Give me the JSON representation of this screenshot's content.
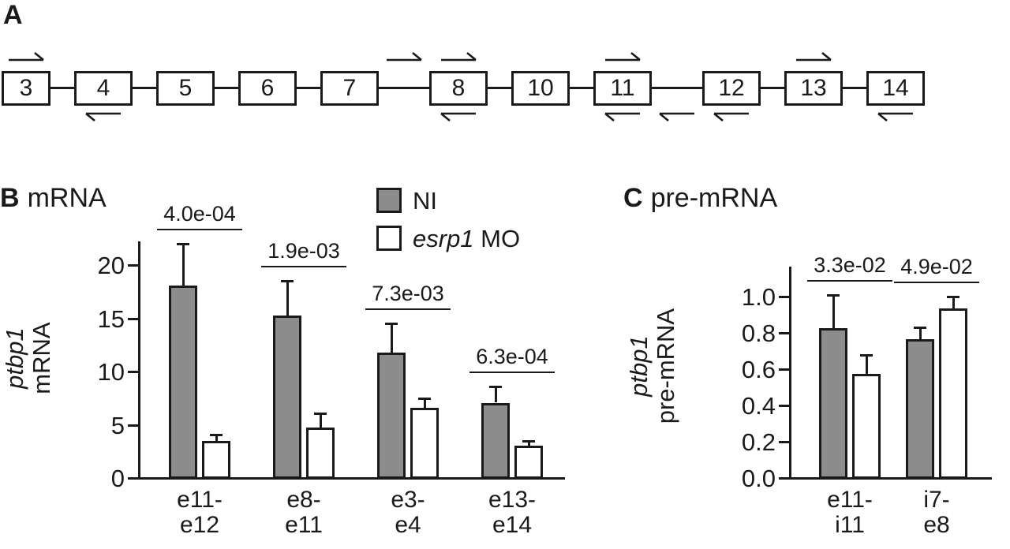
{
  "figure": {
    "panel_a_label": "A",
    "panel_b_label": "B",
    "panel_b_title": "mRNA",
    "panel_c_label": "C",
    "panel_c_title": "pre-mRNA"
  },
  "gene_diagram": {
    "exons": [
      {
        "label": "3"
      },
      {
        "label": "4"
      },
      {
        "label": "5"
      },
      {
        "label": "6"
      },
      {
        "label": "7",
        "wide_gap_after": true
      },
      {
        "label": "8"
      },
      {
        "label": "10"
      },
      {
        "label": "11",
        "wide_gap_after": true
      },
      {
        "label": "12"
      },
      {
        "label": "13"
      },
      {
        "label": "14"
      }
    ],
    "primer_arrows": [
      {
        "at": "exon-3",
        "side": "above",
        "dir": "right"
      },
      {
        "at": "exon-4",
        "side": "below",
        "dir": "left"
      },
      {
        "at": "gap-after-exon-7",
        "side": "above",
        "dir": "right"
      },
      {
        "at": "exon-8",
        "side": "above",
        "dir": "right"
      },
      {
        "at": "exon-8",
        "side": "below",
        "dir": "left"
      },
      {
        "at": "exon-11",
        "side": "above",
        "dir": "right"
      },
      {
        "at": "exon-11",
        "side": "below",
        "dir": "left"
      },
      {
        "at": "gap-after-exon-11",
        "side": "below",
        "dir": "left"
      },
      {
        "at": "exon-12",
        "side": "below",
        "dir": "left"
      },
      {
        "at": "exon-13",
        "side": "above",
        "dir": "right"
      },
      {
        "at": "exon-14",
        "side": "below",
        "dir": "left"
      }
    ]
  },
  "legend": {
    "ni_label": "NI",
    "mo_label_italic": "esrp1",
    "mo_label_rest": " MO",
    "ni_fill": "#8c8c8c",
    "mo_fill": "#ffffff"
  },
  "panel_b": {
    "ylabel_line1": "ptbp1",
    "ylabel_line2": "mRNA"
  },
  "panel_c": {
    "ylabel_line1": "ptbp1",
    "ylabel_line2": "pre-mRNA"
  },
  "chart_data": [
    {
      "type": "bar",
      "panel": "B",
      "title": "mRNA",
      "ylabel": "ptbp1 mRNA",
      "xlabel": "",
      "categories": [
        "e11-\ne12",
        "e8-\ne11",
        "e3-\ne4",
        "e13-\ne14"
      ],
      "series": [
        {
          "name": "NI",
          "fill": "#8c8c8c",
          "values": [
            18.0,
            15.2,
            11.7,
            7.0
          ],
          "errors_upper": [
            4.0,
            3.3,
            2.8,
            1.6
          ]
        },
        {
          "name": "esrp1 MO",
          "fill": "#ffffff",
          "values": [
            3.4,
            4.7,
            6.5,
            3.0
          ],
          "errors_upper": [
            0.7,
            1.4,
            1.0,
            0.5
          ]
        }
      ],
      "pvalues": [
        "4.0e-04",
        "1.9e-03",
        "7.3e-03",
        "6.3e-04"
      ],
      "ylim": [
        0,
        22
      ],
      "ytick_values": [
        0,
        5,
        10,
        15,
        20
      ],
      "ytick_labels": [
        "0",
        "5",
        "10",
        "15",
        "20"
      ],
      "grid": false,
      "legend_position": "top-center"
    },
    {
      "type": "bar",
      "panel": "C",
      "title": "pre-mRNA",
      "ylabel": "ptbp1 pre-mRNA",
      "xlabel": "",
      "categories": [
        "e11-\ni11",
        "i7-\ne8"
      ],
      "series": [
        {
          "name": "NI",
          "fill": "#8c8c8c",
          "values": [
            0.82,
            0.76
          ],
          "errors_upper": [
            0.19,
            0.07
          ]
        },
        {
          "name": "esrp1 MO",
          "fill": "#ffffff",
          "values": [
            0.57,
            0.93
          ],
          "errors_upper": [
            0.11,
            0.07
          ]
        }
      ],
      "pvalues": [
        "3.3e-02",
        "4.9e-02"
      ],
      "ylim": [
        0,
        1.15
      ],
      "ytick_values": [
        0.0,
        0.2,
        0.4,
        0.6,
        0.8,
        1.0
      ],
      "ytick_labels": [
        "0.0",
        "0.2",
        "0.4",
        "0.6",
        "0.8",
        "1.0"
      ],
      "grid": false,
      "legend_position": "none"
    }
  ],
  "colors": {
    "ink": "#1a1a1a",
    "ni_fill": "#8c8c8c",
    "mo_fill": "#ffffff",
    "background": "#ffffff"
  }
}
